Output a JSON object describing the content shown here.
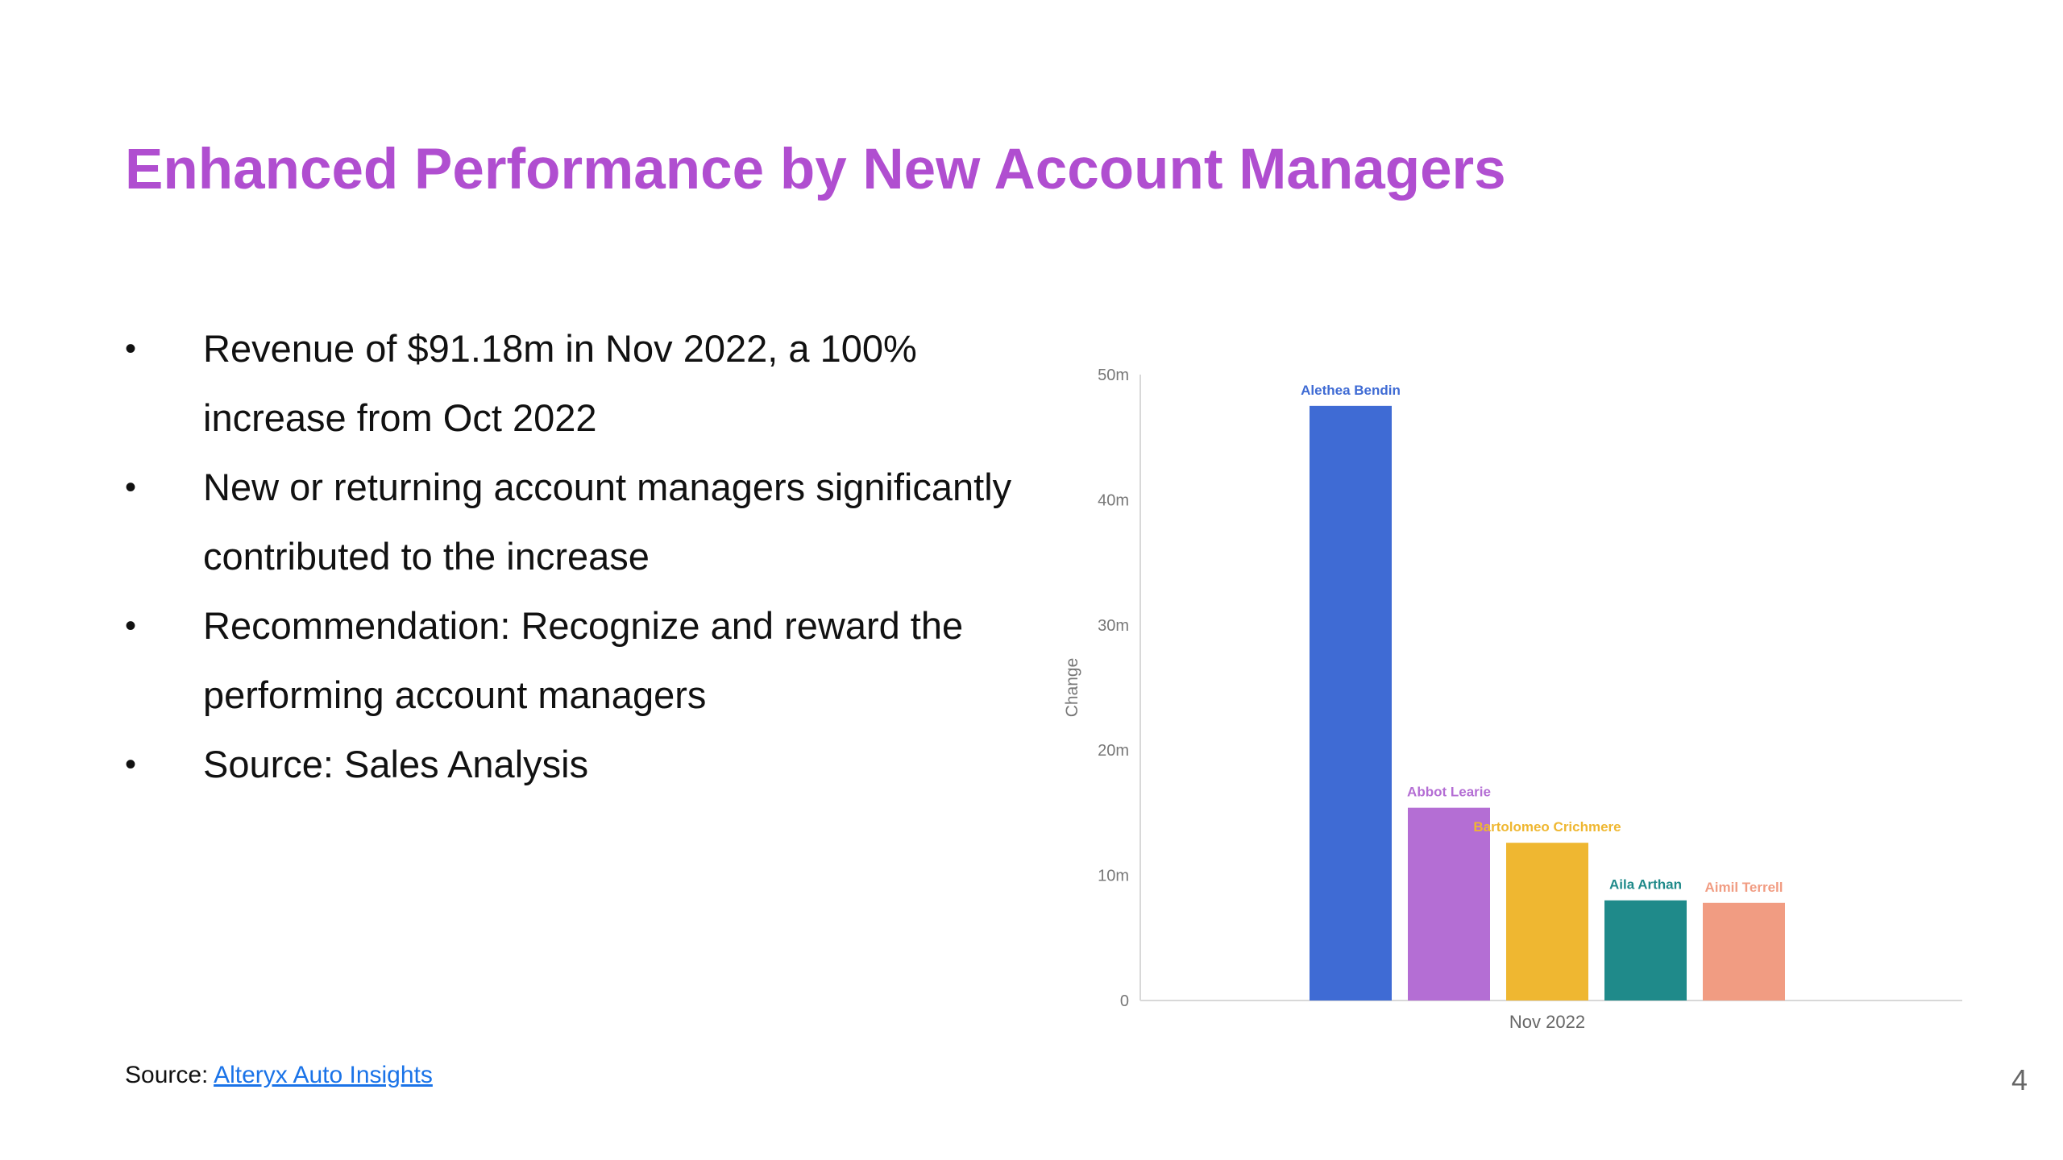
{
  "slide": {
    "title": "Enhanced Performance by New Account Managers",
    "bullets": [
      "Revenue of $91.18m in Nov 2022, a 100% increase from Oct 2022",
      "New or returning account managers significantly contributed to the increase",
      "Recommendation: Recognize and reward the performing account managers",
      "Source: Sales Analysis"
    ],
    "bullet_glyph": "•",
    "source_label": "Source:",
    "source_link": "Alteryx Auto Insights",
    "page_number": "4"
  },
  "chart_data": {
    "type": "bar",
    "categories": [
      "Nov 2022"
    ],
    "series": [
      {
        "name": "Alethea Bendin",
        "values": [
          47.5
        ],
        "color": "#3f6bd4"
      },
      {
        "name": "Abbot Learie",
        "values": [
          15.4
        ],
        "color": "#b46ed4"
      },
      {
        "name": "Bartolomeo Crichmere",
        "values": [
          12.6
        ],
        "color": "#efb731"
      },
      {
        "name": "Aila Arthan",
        "values": [
          8.0
        ],
        "color": "#1f8a8a"
      },
      {
        "name": "Aimil Terrell",
        "values": [
          7.8
        ],
        "color": "#f19c82"
      }
    ],
    "ylabel": "Change",
    "ylim": [
      0,
      50
    ],
    "yticks": [
      0,
      10,
      20,
      30,
      40,
      50
    ],
    "ytick_labels": [
      "0",
      "10m",
      "20m",
      "30m",
      "40m",
      "50m"
    ],
    "grid": false,
    "legend": "none"
  }
}
